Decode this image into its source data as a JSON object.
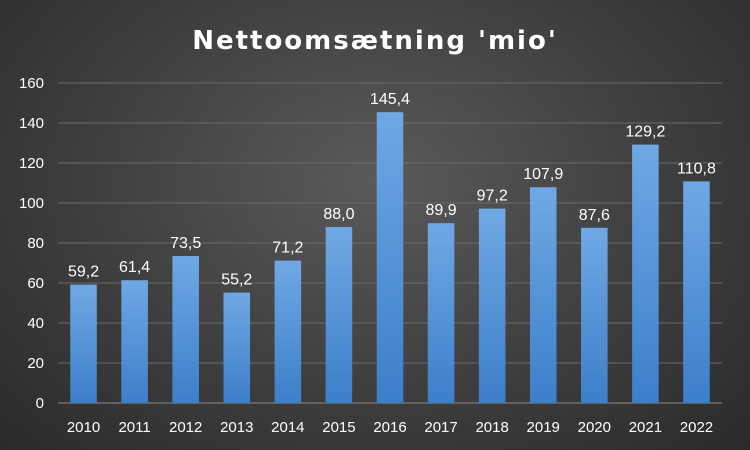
{
  "chart_data": {
    "type": "bar",
    "title": "Nettoomsætning 'mio'",
    "categories": [
      "2010",
      "2011",
      "2012",
      "2013",
      "2014",
      "2015",
      "2016",
      "2017",
      "2018",
      "2019",
      "2020",
      "2021",
      "2022"
    ],
    "values": [
      59.2,
      61.4,
      73.5,
      55.2,
      71.2,
      88.0,
      145.4,
      89.9,
      97.2,
      107.9,
      87.6,
      129.2,
      110.8
    ],
    "value_labels": [
      "59,2",
      "61,4",
      "73,5",
      "55,2",
      "71,2",
      "88,0",
      "145,4",
      "89,9",
      "97,2",
      "107,9",
      "87,6",
      "129,2",
      "110,8"
    ],
    "ylim": [
      0,
      160
    ],
    "yticks": [
      0,
      20,
      40,
      60,
      80,
      100,
      120,
      140,
      160
    ],
    "xlabel": "",
    "ylabel": "",
    "grid": true,
    "bar_color_top": "#6fa8e4",
    "bar_color_bottom": "#3c7fc9"
  }
}
